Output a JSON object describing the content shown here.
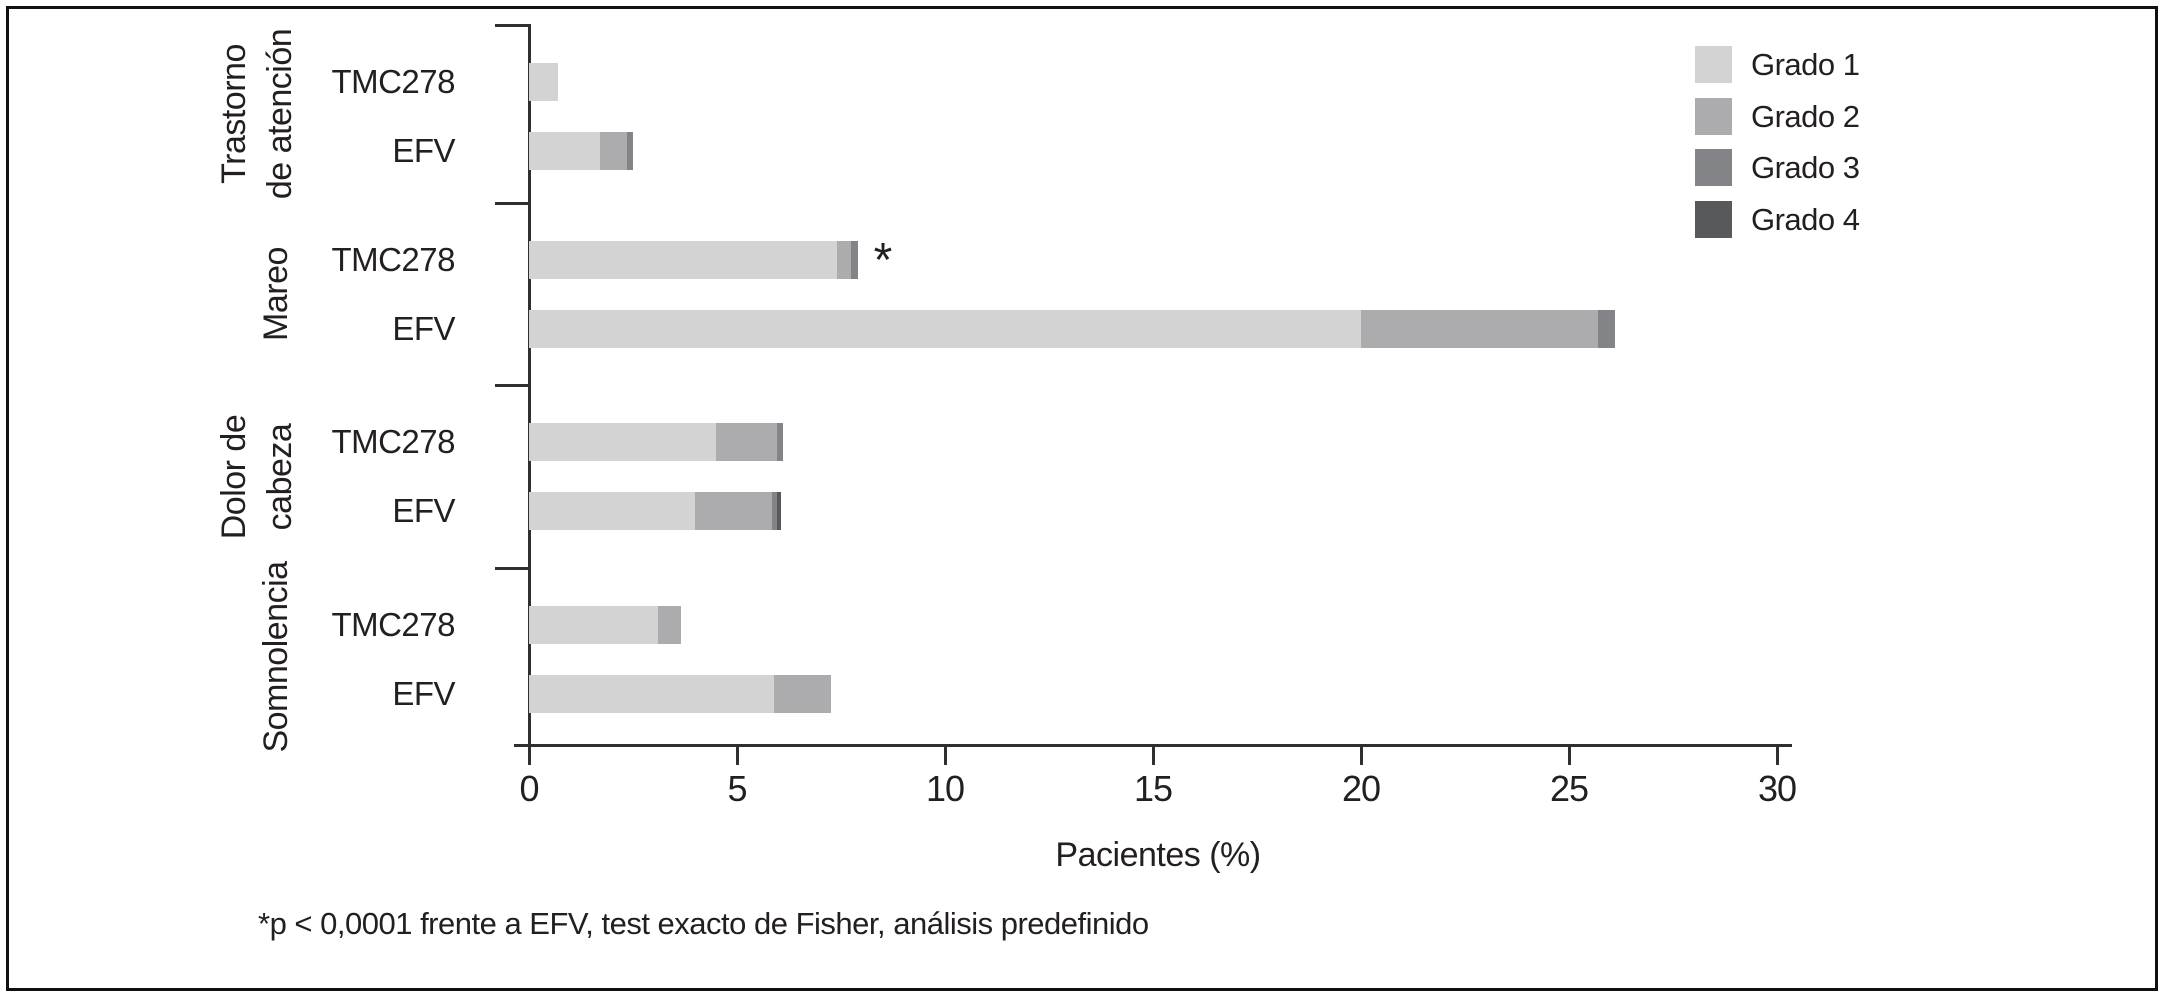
{
  "chart_data": {
    "type": "bar",
    "orientation": "horizontal",
    "stacked": true,
    "title": "",
    "xlabel": "Pacientes (%)",
    "ylabel": "",
    "xlim": [
      0,
      30
    ],
    "xticks": [
      "0",
      "5",
      "10",
      "15",
      "20",
      "25",
      "30"
    ],
    "xtick_values": [
      0,
      5,
      10,
      15,
      20,
      25,
      30
    ],
    "grid": false,
    "legend_position": "top-right",
    "legend": [
      {
        "label": "Grado 1",
        "color": "#d3d3d4"
      },
      {
        "label": "Grado 2",
        "color": "#acacae"
      },
      {
        "label": "Grado 3",
        "color": "#828487"
      },
      {
        "label": "Grado 4",
        "color": "#58595b"
      }
    ],
    "groups": [
      {
        "category": "Trastorno\nde atención",
        "bars": [
          {
            "label": "TMC278",
            "segments": [
              0.7,
              0,
              0,
              0
            ],
            "total": 0.7,
            "annotation": ""
          },
          {
            "label": "EFV",
            "segments": [
              1.7,
              0.65,
              0.15,
              0
            ],
            "total": 2.5,
            "annotation": ""
          }
        ]
      },
      {
        "category": "Mareo",
        "bars": [
          {
            "label": "TMC278",
            "segments": [
              7.4,
              0.35,
              0.15,
              0
            ],
            "total": 7.9,
            "annotation": "*"
          },
          {
            "label": "EFV",
            "segments": [
              20.0,
              5.7,
              0.4,
              0
            ],
            "total": 26.1,
            "annotation": ""
          }
        ]
      },
      {
        "category": "Dolor de\ncabeza",
        "bars": [
          {
            "label": "TMC278",
            "segments": [
              4.5,
              1.45,
              0.15,
              0
            ],
            "total": 6.1,
            "annotation": ""
          },
          {
            "label": "EFV",
            "segments": [
              4.0,
              1.85,
              0.1,
              0.1
            ],
            "total": 6.05,
            "annotation": ""
          }
        ]
      },
      {
        "category": "Somnolencia",
        "bars": [
          {
            "label": "TMC278",
            "segments": [
              3.1,
              0.55,
              0,
              0
            ],
            "total": 3.65,
            "annotation": ""
          },
          {
            "label": "EFV",
            "segments": [
              5.9,
              1.35,
              0,
              0
            ],
            "total": 7.25,
            "annotation": ""
          }
        ]
      }
    ],
    "footnote": "*p < 0,0001 frente a EFV, test exacto de Fisher, análisis predefinido"
  }
}
